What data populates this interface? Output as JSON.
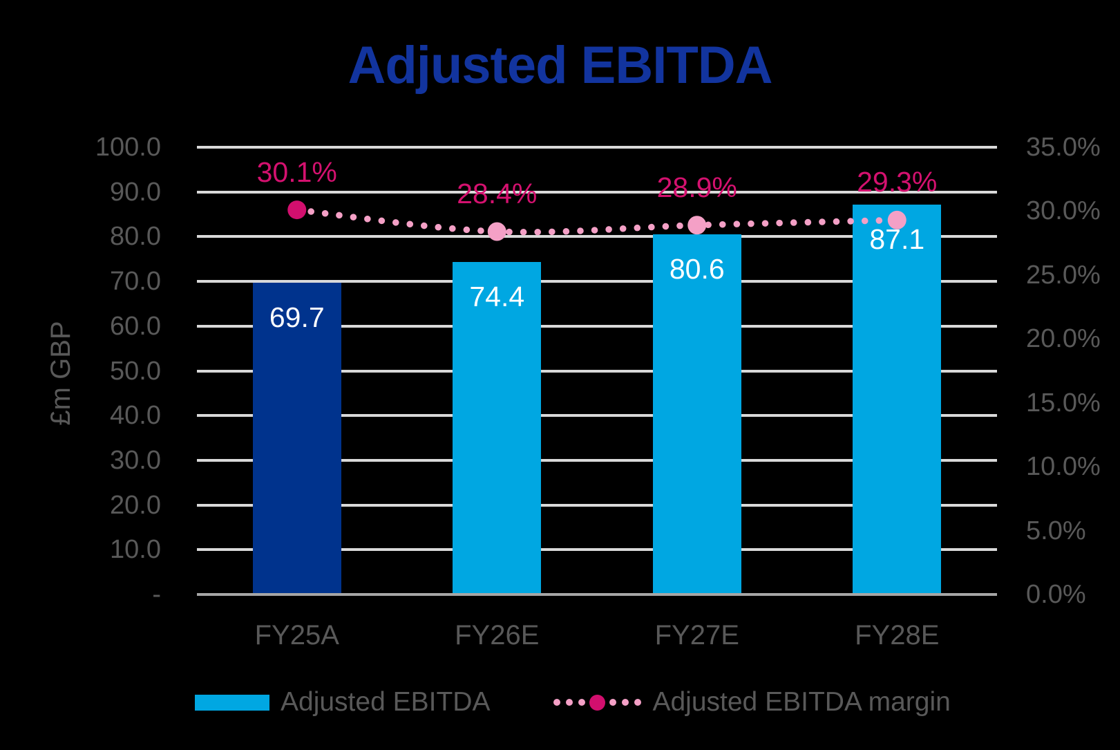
{
  "title": "Adjusted EBITDA",
  "colors": {
    "background": "#000000",
    "title": "#12349E",
    "gridline": "#D9D9D9",
    "axis_line": "#A6A6A6",
    "axis_text": "#595959",
    "bar_value": "#FFFFFF",
    "data_label": "#D4116F",
    "bar_first": "#00338D",
    "bar_rest": "#00A7E2",
    "line": "#F4A0C6",
    "marker_first": "#D20F6E"
  },
  "chart_data": {
    "type": "bar+line combo",
    "title": "Adjusted EBITDA",
    "categories": [
      "FY25A",
      "FY26E",
      "FY27E",
      "FY28E"
    ],
    "series": [
      {
        "name": "Adjusted EBITDA",
        "type": "bar",
        "axis": "left",
        "values": [
          69.7,
          74.4,
          80.6,
          87.1
        ],
        "labels": [
          "69.7",
          "74.4",
          "80.6",
          "87.1"
        ],
        "point_colors": [
          "#00338D",
          "#00A7E2",
          "#00A7E2",
          "#00A7E2"
        ]
      },
      {
        "name": "Adjusted EBITDA margin",
        "type": "line",
        "axis": "right",
        "values": [
          30.1,
          28.4,
          28.9,
          29.3
        ],
        "labels": [
          "30.1%",
          "28.4%",
          "28.9%",
          "29.3%"
        ],
        "line_color": "#F4A0C6",
        "line_style": "dotted",
        "marker_colors": [
          "#D20F6E",
          "#F4A0C6",
          "#F4A0C6",
          "#F4A0C6"
        ]
      }
    ],
    "left_axis": {
      "label": "£m GBP",
      "min": 0,
      "max": 100,
      "step": 10,
      "ticks": [
        "100.0",
        "90.0",
        "80.0",
        "70.0",
        "60.0",
        "50.0",
        "40.0",
        "30.0",
        "20.0",
        "10.0",
        "-"
      ]
    },
    "right_axis": {
      "min": 0,
      "max": 35,
      "step": 5,
      "ticks": [
        "35.0%",
        "30.0%",
        "25.0%",
        "20.0%",
        "15.0%",
        "10.0%",
        "5.0%",
        "0.0%"
      ]
    },
    "grid": true,
    "legend_position": "bottom"
  }
}
